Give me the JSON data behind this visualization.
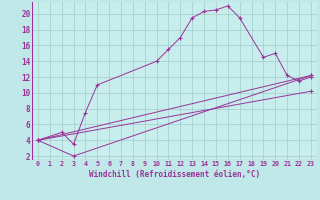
{
  "xlabel": "Windchill (Refroidissement éolien,°C)",
  "bg_color": "#c0e8e8",
  "grid_color": "#a0cccc",
  "line_color": "#993399",
  "plot_bg": "#c8eded",
  "xlim": [
    -0.5,
    23.5
  ],
  "ylim": [
    1.5,
    21.5
  ],
  "xticks": [
    0,
    1,
    2,
    3,
    4,
    5,
    6,
    7,
    8,
    9,
    10,
    11,
    12,
    13,
    14,
    15,
    16,
    17,
    18,
    19,
    20,
    21,
    22,
    23
  ],
  "yticks": [
    2,
    4,
    6,
    8,
    10,
    12,
    14,
    16,
    18,
    20
  ],
  "series": [
    {
      "x": [
        0,
        2,
        3,
        4,
        5,
        10,
        11,
        12,
        13,
        14,
        15,
        16,
        17,
        19,
        20,
        21,
        22,
        23
      ],
      "y": [
        4,
        5,
        3.5,
        7.5,
        11,
        14,
        15.5,
        17,
        19.5,
        20.3,
        20.5,
        21,
        19.5,
        14.5,
        15,
        12.2,
        11.5,
        12
      ]
    },
    {
      "x": [
        0,
        3,
        23
      ],
      "y": [
        4,
        2,
        12.2
      ]
    },
    {
      "x": [
        0,
        23
      ],
      "y": [
        4,
        10.2
      ]
    },
    {
      "x": [
        0,
        23
      ],
      "y": [
        4,
        12.2
      ]
    }
  ]
}
